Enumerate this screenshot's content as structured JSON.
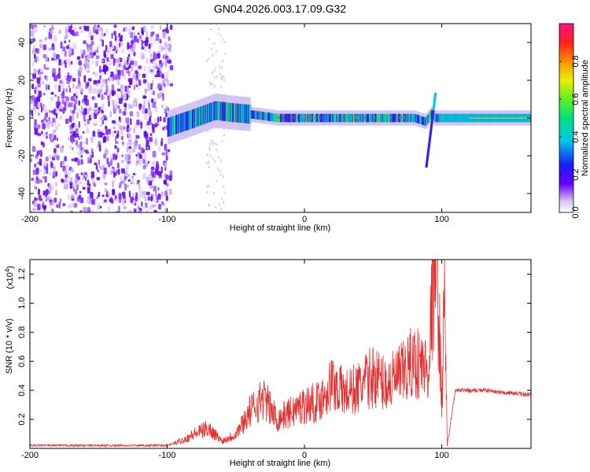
{
  "title": "GN04.2026.003.17.09.G32",
  "chart_data": [
    {
      "type": "heatmap",
      "xlabel": "Height of straight line (km)",
      "ylabel": "Frequency (Hz)",
      "xlim": [
        -200,
        165
      ],
      "ylim": [
        -50,
        50
      ],
      "xticks": [
        -200,
        -100,
        0,
        100
      ],
      "xtick_labels": [
        "-200",
        "-100",
        "0",
        "100"
      ],
      "yticks": [
        -40,
        -20,
        0,
        20,
        40
      ],
      "ytick_labels": [
        "-40",
        "-20",
        "0",
        "20",
        "40"
      ],
      "colorbar": {
        "label": "Normalized spectral amplitude",
        "range": [
          0,
          1
        ],
        "ticks": [
          0,
          0.2,
          0.4,
          0.6,
          0.8
        ],
        "tick_labels": [
          "0.0",
          "0.2",
          "0.4",
          "0.6",
          "0.8"
        ]
      },
      "ridge": {
        "description_points_x": [
          -100,
          -80,
          -65,
          -55,
          -40,
          -20,
          0,
          20,
          40,
          60,
          80,
          88,
          92,
          95,
          100,
          130,
          165
        ],
        "center_freq_y": [
          -5,
          0,
          4,
          3,
          2,
          0,
          0,
          0,
          0,
          0,
          0,
          -2,
          2,
          0,
          0,
          0,
          0
        ]
      }
    },
    {
      "type": "line",
      "xlabel": "Height of straight line (km)",
      "ylabel": "SNR (10 * v/v)",
      "y_scale_label": "(x10",
      "y_scale_exp": "4",
      "y_scale_close": ")",
      "xlim": [
        -200,
        165
      ],
      "ylim": [
        0,
        1.3
      ],
      "xticks": [
        -200,
        -100,
        0,
        100
      ],
      "xtick_labels": [
        "-200",
        "-100",
        "0",
        "100"
      ],
      "yticks": [
        0.2,
        0.4,
        0.6,
        0.8,
        1.0,
        1.2
      ],
      "ytick_labels": [
        "0.2",
        "0.4",
        "0.6",
        "0.8",
        "1.0",
        "1.2"
      ],
      "series": [
        {
          "name": "SNR",
          "color": "#e53030",
          "x": [
            -200,
            -150,
            -100,
            -90,
            -80,
            -70,
            -60,
            -50,
            -40,
            -30,
            -20,
            -10,
            0,
            10,
            20,
            30,
            40,
            50,
            60,
            70,
            80,
            90,
            95,
            98,
            100,
            102,
            104,
            110,
            130,
            150,
            165
          ],
          "y": [
            0.02,
            0.02,
            0.02,
            0.05,
            0.1,
            0.14,
            0.05,
            0.1,
            0.25,
            0.35,
            0.2,
            0.25,
            0.3,
            0.32,
            0.45,
            0.38,
            0.42,
            0.5,
            0.44,
            0.5,
            0.6,
            0.55,
            1.3,
            0.9,
            0.3,
            1.1,
            0.02,
            0.4,
            0.4,
            0.38,
            0.37
          ]
        }
      ]
    }
  ]
}
